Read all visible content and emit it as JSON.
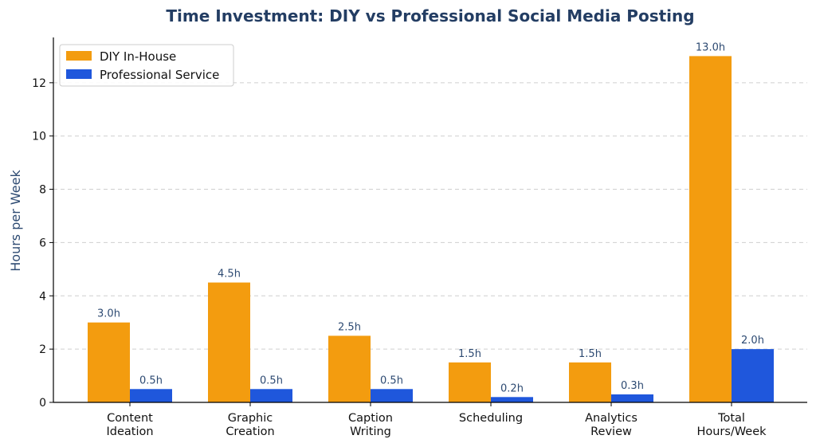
{
  "chart_data": {
    "type": "bar",
    "title": "Time Investment: DIY vs Professional Social Media Posting",
    "xlabel": "",
    "ylabel": "Hours per Week",
    "categories": [
      [
        "Content",
        "Ideation"
      ],
      [
        "Graphic",
        "Creation"
      ],
      [
        "Caption",
        "Writing"
      ],
      [
        "Scheduling"
      ],
      [
        "Analytics",
        "Review"
      ],
      [
        "Total",
        "Hours/Week"
      ]
    ],
    "series": [
      {
        "name": "DIY In-House",
        "color": "#f39c0f",
        "values": [
          3.0,
          4.5,
          2.5,
          1.5,
          1.5,
          13.0
        ],
        "labels": [
          "3.0h",
          "4.5h",
          "2.5h",
          "1.5h",
          "1.5h",
          "13.0h"
        ]
      },
      {
        "name": "Professional Service",
        "color": "#1f57dc",
        "values": [
          0.5,
          0.5,
          0.5,
          0.2,
          0.3,
          2.0
        ],
        "labels": [
          "0.5h",
          "0.5h",
          "0.5h",
          "0.2h",
          "0.3h",
          "2.0h"
        ]
      }
    ],
    "ylim": [
      0,
      13.7
    ],
    "yticks": [
      0,
      2,
      4,
      6,
      8,
      10,
      12
    ],
    "grid": "y-dashed",
    "legend": "top-left"
  }
}
